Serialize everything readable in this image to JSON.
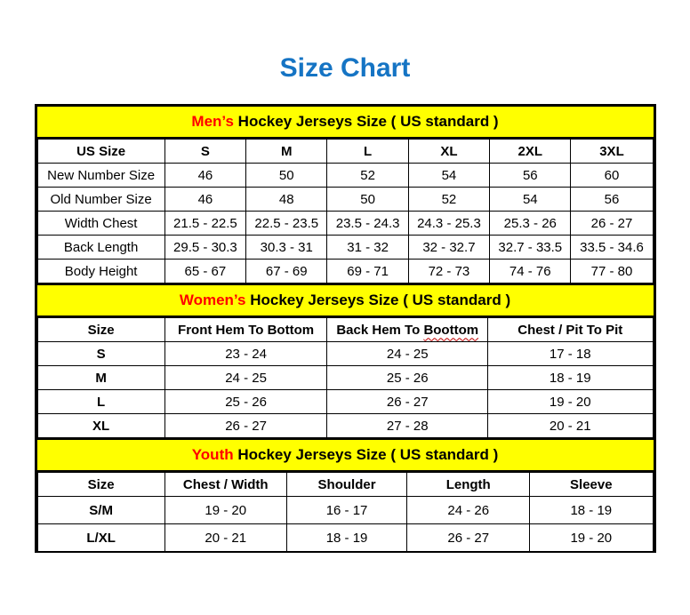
{
  "page": {
    "title": "Size Chart"
  },
  "colors": {
    "title_blue": "#1574C4",
    "banner_yellow": "#FFFF00",
    "accent_red": "#FF0000",
    "border_black": "#000000"
  },
  "tables": [
    {
      "name": "mens",
      "banner": {
        "highlight": "Men’s",
        "rest": " Hockey Jerseys Size ( US standard )"
      },
      "columns": [
        {
          "label": "US Size"
        },
        {
          "label": "S"
        },
        {
          "label": "M"
        },
        {
          "label": "L"
        },
        {
          "label": "XL"
        },
        {
          "label": "2XL"
        },
        {
          "label": "3XL"
        }
      ],
      "rows": [
        {
          "label": "New Number Size",
          "values": [
            "46",
            "50",
            "52",
            "54",
            "56",
            "60"
          ]
        },
        {
          "label": "Old Number Size",
          "values": [
            "46",
            "48",
            "50",
            "52",
            "54",
            "56"
          ]
        },
        {
          "label": "Width Chest",
          "values": [
            "21.5 - 22.5",
            "22.5 - 23.5",
            "23.5 - 24.3",
            "24.3 - 25.3",
            "25.3 - 26",
            "26 - 27"
          ]
        },
        {
          "label": "Back Length",
          "values": [
            "29.5 - 30.3",
            "30.3 - 31",
            "31 - 32",
            "32 - 32.7",
            "32.7 - 33.5",
            "33.5 - 34.6"
          ]
        },
        {
          "label": "Body Height",
          "values": [
            "65 - 67",
            "67 - 69",
            "69 - 71",
            "72 - 73",
            "74 - 76",
            "77 - 80"
          ]
        }
      ]
    },
    {
      "name": "womens",
      "banner": {
        "highlight": "Women’s",
        "rest": " Hockey Jerseys Size ( US standard )"
      },
      "columns": [
        {
          "label": "Size"
        },
        {
          "label": "Front Hem To Bottom"
        },
        {
          "label": "Back Hem To Boottom",
          "label_prefix": "Back Hem To ",
          "squiggle_word": "Boottom"
        },
        {
          "label": "Chest / Pit To Pit"
        }
      ],
      "rows": [
        {
          "label": "S",
          "values": [
            "23 - 24",
            "24 - 25",
            "17 - 18"
          ]
        },
        {
          "label": "M",
          "values": [
            "24 - 25",
            "25 - 26",
            "18 - 19"
          ]
        },
        {
          "label": "L",
          "values": [
            "25 - 26",
            "26 - 27",
            "19 - 20"
          ]
        },
        {
          "label": "XL",
          "values": [
            "26 - 27",
            "27 - 28",
            "20 - 21"
          ]
        }
      ]
    },
    {
      "name": "youth",
      "banner": {
        "highlight": "Youth",
        "rest": " Hockey Jerseys Size ( US standard )"
      },
      "columns": [
        {
          "label": "Size"
        },
        {
          "label": "Chest / Width"
        },
        {
          "label": "Shoulder"
        },
        {
          "label": "Length"
        },
        {
          "label": "Sleeve"
        }
      ],
      "rows": [
        {
          "label": "S/M",
          "values": [
            "19 - 20",
            "16 - 17",
            "24 - 26",
            "18 - 19"
          ]
        },
        {
          "label": "L/XL",
          "values": [
            "20 - 21",
            "18 - 19",
            "26 - 27",
            "19 - 20"
          ]
        }
      ]
    }
  ]
}
